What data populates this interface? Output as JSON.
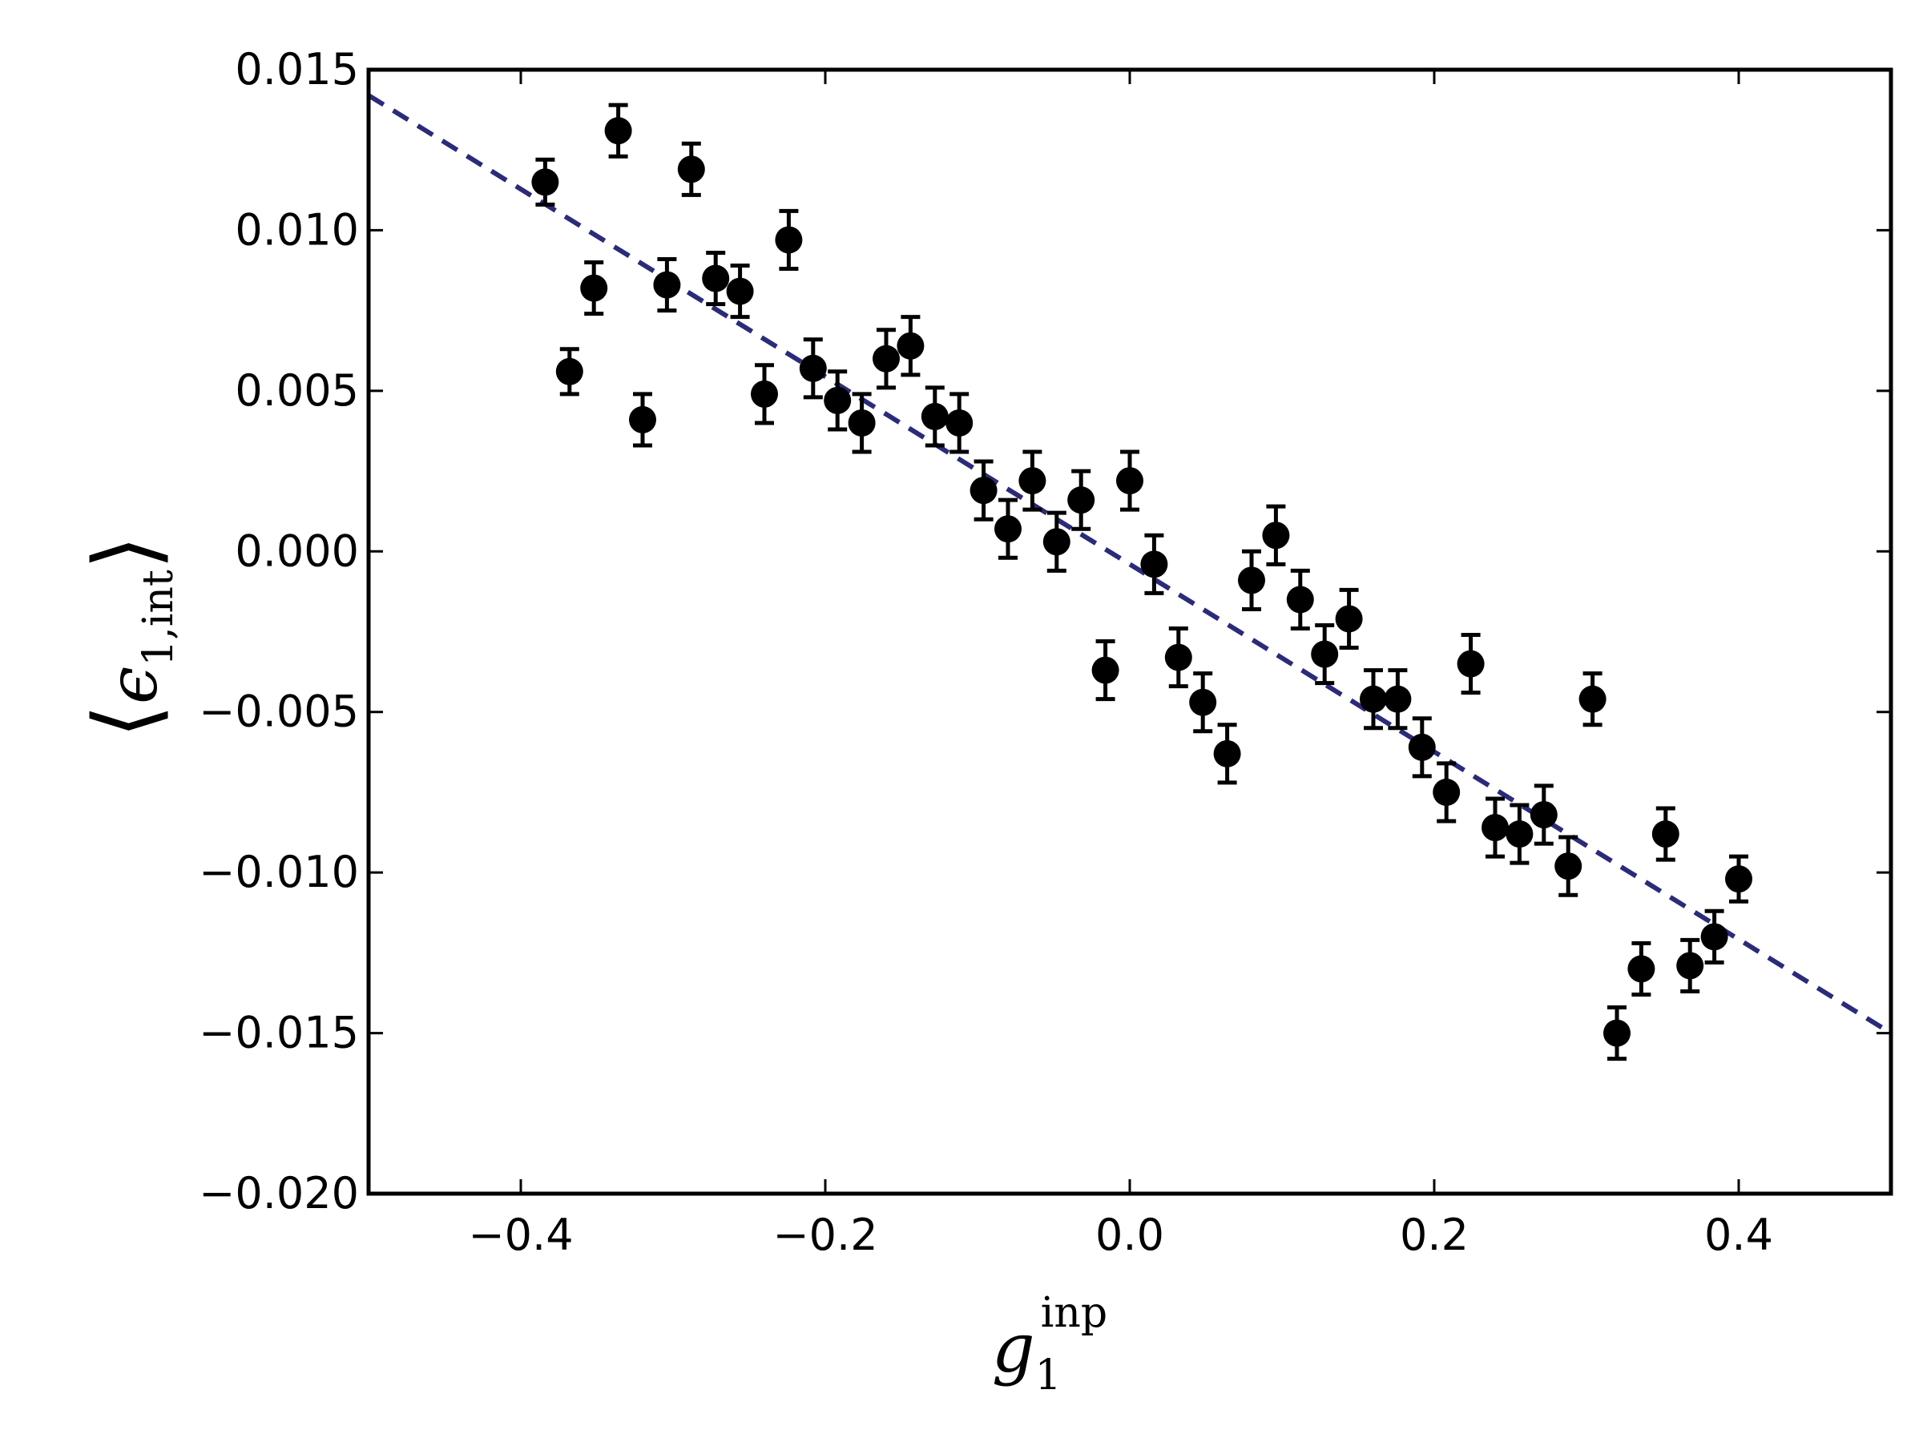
{
  "chart_data": {
    "type": "scatter",
    "title": "",
    "xlabel": {
      "base": "g",
      "sub": "1",
      "sup": "inp"
    },
    "ylabel": {
      "left": "⟨",
      "base": "ϵ",
      "sub": "1,int",
      "right": "⟩"
    },
    "xlim": [
      -0.5,
      0.5
    ],
    "ylim": [
      -0.02,
      0.015
    ],
    "x_ticks": [
      -0.4,
      -0.2,
      0.0,
      0.2,
      0.4
    ],
    "x_tick_labels": [
      "−0.4",
      "−0.2",
      "0.0",
      "0.2",
      "0.4"
    ],
    "y_ticks": [
      0.015,
      0.01,
      0.005,
      0.0,
      -0.005,
      -0.01,
      -0.015,
      -0.02
    ],
    "y_tick_labels": [
      "0.015",
      "0.010",
      "0.005",
      "0.000",
      "−0.005",
      "−0.010",
      "−0.015",
      "−0.020"
    ],
    "grid": false,
    "legend": "none",
    "colors": {
      "points": "#000000",
      "fit_line": "#2b2b7a",
      "axes": "#000000"
    },
    "series": [
      {
        "marker": "filled-circle",
        "error_bars": true,
        "points": [
          {
            "x": -0.384,
            "y": 0.0115,
            "err": 0.0007
          },
          {
            "x": -0.368,
            "y": 0.0056,
            "err": 0.0007
          },
          {
            "x": -0.352,
            "y": 0.0082,
            "err": 0.0008
          },
          {
            "x": -0.336,
            "y": 0.0131,
            "err": 0.0008
          },
          {
            "x": -0.32,
            "y": 0.0041,
            "err": 0.0008
          },
          {
            "x": -0.304,
            "y": 0.0083,
            "err": 0.0008
          },
          {
            "x": -0.288,
            "y": 0.0119,
            "err": 0.0008
          },
          {
            "x": -0.272,
            "y": 0.0085,
            "err": 0.0008
          },
          {
            "x": -0.256,
            "y": 0.0081,
            "err": 0.0008
          },
          {
            "x": -0.24,
            "y": 0.0049,
            "err": 0.0009
          },
          {
            "x": -0.224,
            "y": 0.0097,
            "err": 0.0009
          },
          {
            "x": -0.208,
            "y": 0.0057,
            "err": 0.0009
          },
          {
            "x": -0.192,
            "y": 0.0047,
            "err": 0.0009
          },
          {
            "x": -0.176,
            "y": 0.004,
            "err": 0.0009
          },
          {
            "x": -0.16,
            "y": 0.006,
            "err": 0.0009
          },
          {
            "x": -0.144,
            "y": 0.0064,
            "err": 0.0009
          },
          {
            "x": -0.128,
            "y": 0.0042,
            "err": 0.0009
          },
          {
            "x": -0.112,
            "y": 0.004,
            "err": 0.0009
          },
          {
            "x": -0.096,
            "y": 0.0019,
            "err": 0.0009
          },
          {
            "x": -0.08,
            "y": 0.0007,
            "err": 0.0009
          },
          {
            "x": -0.064,
            "y": 0.0022,
            "err": 0.0009
          },
          {
            "x": -0.048,
            "y": 0.0003,
            "err": 0.0009
          },
          {
            "x": -0.032,
            "y": 0.0016,
            "err": 0.0009
          },
          {
            "x": -0.016,
            "y": -0.0037,
            "err": 0.0009
          },
          {
            "x": 0.0,
            "y": 0.0022,
            "err": 0.0009
          },
          {
            "x": 0.016,
            "y": -0.0004,
            "err": 0.0009
          },
          {
            "x": 0.032,
            "y": -0.0033,
            "err": 0.0009
          },
          {
            "x": 0.048,
            "y": -0.0047,
            "err": 0.0009
          },
          {
            "x": 0.064,
            "y": -0.0063,
            "err": 0.0009
          },
          {
            "x": 0.08,
            "y": -0.0009,
            "err": 0.0009
          },
          {
            "x": 0.096,
            "y": 0.0005,
            "err": 0.0009
          },
          {
            "x": 0.112,
            "y": -0.0015,
            "err": 0.0009
          },
          {
            "x": 0.128,
            "y": -0.0032,
            "err": 0.0009
          },
          {
            "x": 0.144,
            "y": -0.0021,
            "err": 0.0009
          },
          {
            "x": 0.16,
            "y": -0.0046,
            "err": 0.0009
          },
          {
            "x": 0.176,
            "y": -0.0046,
            "err": 0.0009
          },
          {
            "x": 0.192,
            "y": -0.0061,
            "err": 0.0009
          },
          {
            "x": 0.208,
            "y": -0.0075,
            "err": 0.0009
          },
          {
            "x": 0.224,
            "y": -0.0035,
            "err": 0.0009
          },
          {
            "x": 0.24,
            "y": -0.0086,
            "err": 0.0009
          },
          {
            "x": 0.256,
            "y": -0.0088,
            "err": 0.0009
          },
          {
            "x": 0.272,
            "y": -0.0082,
            "err": 0.0009
          },
          {
            "x": 0.288,
            "y": -0.0098,
            "err": 0.0009
          },
          {
            "x": 0.304,
            "y": -0.0046,
            "err": 0.0008
          },
          {
            "x": 0.32,
            "y": -0.015,
            "err": 0.0008
          },
          {
            "x": 0.336,
            "y": -0.013,
            "err": 0.0008
          },
          {
            "x": 0.352,
            "y": -0.0088,
            "err": 0.0008
          },
          {
            "x": 0.368,
            "y": -0.0129,
            "err": 0.0008
          },
          {
            "x": 0.384,
            "y": -0.012,
            "err": 0.0008
          },
          {
            "x": 0.4,
            "y": -0.0102,
            "err": 0.0007
          }
        ]
      }
    ],
    "fit_line": {
      "style": "dashed",
      "x": [
        -0.5,
        0.5
      ],
      "y": [
        0.0142,
        -0.015
      ]
    }
  }
}
